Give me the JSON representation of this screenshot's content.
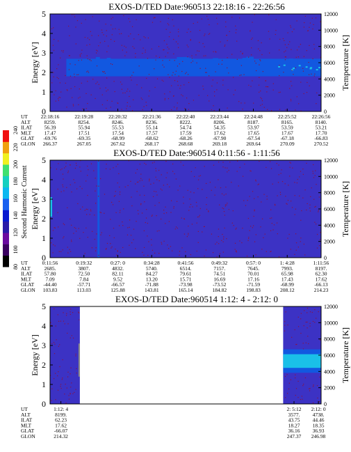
{
  "colorbar": {
    "label": "Second Harmonic Current",
    "ticks": [
      "80",
      "100",
      "120",
      "140",
      "160",
      "180",
      "200",
      "220",
      "240"
    ],
    "colors": [
      "#000000",
      "#3a0060",
      "#6a0aa0",
      "#2a1aa8",
      "#0818d0",
      "#1860f0",
      "#0cb8f0",
      "#16d0c0",
      "#40e070",
      "#f0f020",
      "#f0a010",
      "#f01010"
    ]
  },
  "colors": {
    "background": "#3c32c4",
    "speckle": "#8a1240",
    "band": "#1258e0",
    "band_bright": "#1ac0e8",
    "gap_line": "#888888"
  },
  "chart_data": [
    {
      "type": "heatmap",
      "title": "EXOS-D/TED  Date:960513  22:18:16 - 22:26:56",
      "ylabel": "Energy [eV]",
      "y2label": "Temperature [K]",
      "ylim": [
        0,
        5
      ],
      "y2lim": [
        0,
        12000
      ],
      "y_ticks": [
        "0",
        "1",
        "2",
        "3",
        "4",
        "5"
      ],
      "y2_ticks": [
        "0",
        "2000",
        "4000",
        "6000",
        "8000",
        "10000",
        "12000"
      ],
      "feature": {
        "energy_range_eV": [
          1.8,
          2.7
        ],
        "x_fraction": [
          0.06,
          1.0
        ]
      },
      "table": {
        "row_labels": [
          "UT",
          "ALT",
          "ILAT",
          "MLT",
          "GLAT",
          "GLON"
        ],
        "columns": [
          [
            "22:18:16",
            "8259.",
            "56.39",
            "17.47",
            "-69.76",
            "266.37"
          ],
          [
            "22:19:28",
            "8254.",
            "55.94",
            "17.51",
            "-69.35",
            "267.05"
          ],
          [
            "22:20:32",
            "8246.",
            "55.53",
            "17.54",
            "-68.99",
            "267.62"
          ],
          [
            "22:21:36",
            "8236.",
            "55.14",
            "17.57",
            "-68.62",
            "268.17"
          ],
          [
            "22:22:40",
            "8222.",
            "54.74",
            "17.59",
            "-68.26",
            "268.68"
          ],
          [
            "22:23:44",
            "8206.",
            "54.35",
            "17.62",
            "-67.90",
            "269.18"
          ],
          [
            "22:24:48",
            "8187.",
            "53.97",
            "17.65",
            "-67.54",
            "269.64"
          ],
          [
            "22:25:52",
            "8165.",
            "53.59",
            "17.67",
            "-67.18",
            "270.09"
          ],
          [
            "22:26:56",
            "8140.",
            "53.21",
            "17.70",
            "-66.83",
            "270.52"
          ]
        ]
      }
    },
    {
      "type": "heatmap",
      "title": "EXOS-D/TED  Date:960514  0:11:56 - 1:11:56",
      "ylabel": "Energy [eV]",
      "y2label": "Temperature [K]",
      "ylim": [
        0,
        5
      ],
      "y2lim": [
        0,
        12000
      ],
      "y_ticks": [
        "0",
        "1",
        "2",
        "3",
        "4",
        "5"
      ],
      "y2_ticks": [
        "0",
        "2000",
        "4000",
        "6000",
        "8000",
        "10000",
        "12000"
      ],
      "feature": {
        "vertical_stripe_x_fraction": 0.175
      },
      "table": {
        "row_labels": [
          "UT",
          "ALT",
          "ILAT",
          "MLT",
          "GLAT",
          "GLON"
        ],
        "columns": [
          [
            "0:11:56",
            "2685.",
            "57.80",
            "7.09",
            "-44.40",
            "103.83"
          ],
          [
            "0:19:32",
            "3807.",
            "72.50",
            "7.84",
            "-57.71",
            "113.03"
          ],
          [
            "0:27: 0",
            "4832.",
            "82.11",
            "9.52",
            "-66.57",
            "125.88"
          ],
          [
            "0:34:28",
            "5740.",
            "84.27",
            "13.20",
            "-71.88",
            "143.81"
          ],
          [
            "0:41:56",
            "6514.",
            "79.61",
            "15.71",
            "-73.98",
            "165.14"
          ],
          [
            "0:49:32",
            "7157.",
            "74.51",
            "16.69",
            "-73.52",
            "184.82"
          ],
          [
            "0:57: 0",
            "7645.",
            "70.01",
            "17.16",
            "-71.59",
            "198.83"
          ],
          [
            "1: 4:28",
            "7993.",
            "65.98",
            "17.43",
            "-68.99",
            "208.12"
          ],
          [
            "1:11:56",
            "8197.",
            "62.30",
            "17.62",
            "-66.13",
            "214.23"
          ]
        ]
      }
    },
    {
      "type": "heatmap",
      "title": "EXOS-D/TED  Date:960514  1:12: 4 - 2:12: 0",
      "ylabel": "Energy [eV]",
      "y2label": "Temperature [K]",
      "ylim": [
        0,
        5
      ],
      "y2lim": [
        0,
        12000
      ],
      "y_ticks": [
        "0",
        "1",
        "2",
        "3",
        "4",
        "5"
      ],
      "y2_ticks": [
        "0",
        "2000",
        "4000",
        "6000",
        "8000",
        "10000",
        "12000"
      ],
      "feature": {
        "data_x_fraction": [
          [
            0.0,
            0.11
          ],
          [
            0.86,
            1.0
          ]
        ],
        "energy_range_eV": [
          1.6,
          2.8
        ]
      },
      "table": {
        "row_labels": [
          "UT",
          "ALT",
          "ILAT",
          "MLT",
          "GLAT",
          "GLON"
        ],
        "columns": [
          [
            "1:12: 4",
            "8199.",
            "62.23",
            "17.62",
            "-66.07",
            "214.32"
          ],
          [
            "2: 5:12",
            "3577.",
            "43.75",
            "18.27",
            "36.16",
            "247.37"
          ],
          [
            "2:12: 0",
            "4738.",
            "44.46",
            "18.35",
            "36.93",
            "246.98"
          ]
        ]
      }
    }
  ]
}
